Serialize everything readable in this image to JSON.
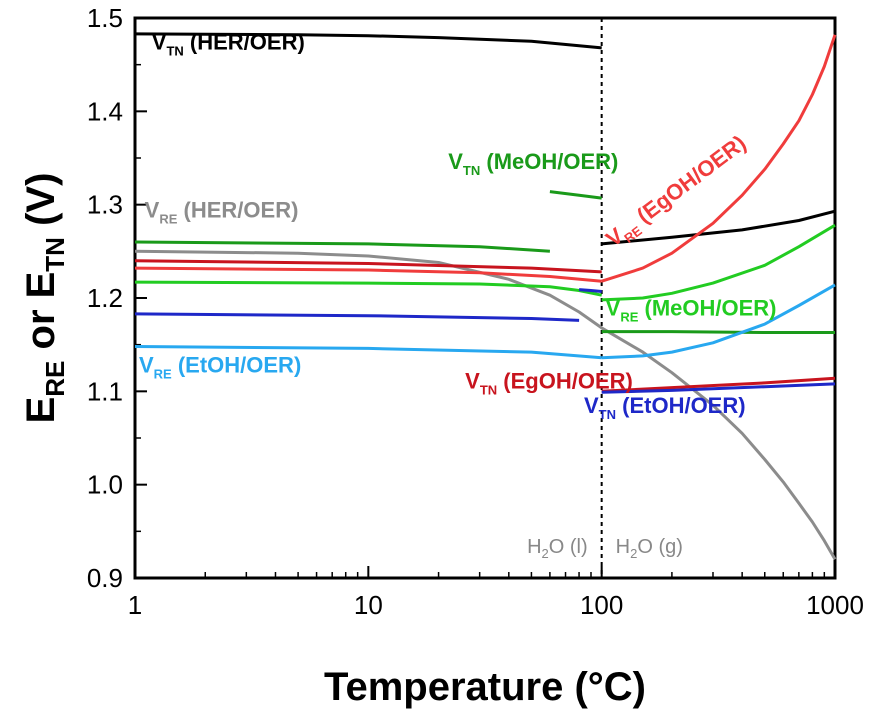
{
  "chart_data": {
    "type": "line",
    "xlabel": "Temperature (°C)",
    "ylabel_parts": [
      "E",
      "RE",
      " or E",
      "TN",
      " (V)"
    ],
    "xscale": "log",
    "xlim": [
      1,
      1000
    ],
    "ylim": [
      0.9,
      1.5
    ],
    "x_ticks": [
      1,
      10,
      100,
      1000
    ],
    "x_tick_labels": [
      "1",
      "10",
      "100",
      "1000"
    ],
    "y_ticks": [
      0.9,
      1.0,
      1.1,
      1.2,
      1.3,
      1.4,
      1.5
    ],
    "y_tick_labels": [
      "0.9",
      "1.0",
      "1.1",
      "1.2",
      "1.3",
      "1.4",
      "1.5"
    ],
    "grid": false,
    "phase_boundary": 100,
    "phase_labels": [
      "H2O (l)",
      "H2O (g)"
    ],
    "series": [
      {
        "name": "VTN (HER/OER)",
        "color": "#000000",
        "segments": [
          {
            "x": [
              1,
              5,
              10,
              20,
              50,
              100
            ],
            "y": [
              1.483,
              1.482,
              1.481,
              1.479,
              1.475,
              1.468
            ]
          },
          {
            "x": [
              100,
              200,
              400,
              700,
              1000
            ],
            "y": [
              1.258,
              1.265,
              1.273,
              1.283,
              1.293
            ]
          }
        ]
      },
      {
        "name": "VRE (HER/OER)",
        "color": "#8c8c8c",
        "segments": [
          {
            "x": [
              1,
              5,
              10,
              20,
              40,
              60,
              80,
              100,
              150,
              200,
              300,
              400,
              500,
              600,
              700,
              800,
              900,
              1000
            ],
            "y": [
              1.25,
              1.248,
              1.245,
              1.238,
              1.22,
              1.203,
              1.185,
              1.168,
              1.142,
              1.12,
              1.085,
              1.055,
              1.027,
              1.003,
              0.98,
              0.96,
              0.94,
              0.92
            ]
          }
        ]
      },
      {
        "name": "VTN (MeOH/OER)",
        "color": "#1a9a1a",
        "segments": [
          {
            "x": [
              1,
              10,
              30,
              60
            ],
            "y": [
              1.26,
              1.258,
              1.255,
              1.25
            ]
          },
          {
            "x": [
              60,
              80,
              100
            ],
            "y": [
              1.314,
              1.31,
              1.307
            ]
          },
          {
            "x": [
              100,
              200,
              500,
              1000
            ],
            "y": [
              1.164,
              1.164,
              1.163,
              1.163
            ]
          }
        ]
      },
      {
        "name": "VRE (MeOH/OER)",
        "color": "#22cc22",
        "segments": [
          {
            "x": [
              1,
              10,
              30,
              60,
              80,
              100
            ],
            "y": [
              1.217,
              1.216,
              1.215,
              1.212,
              1.208,
              1.203
            ]
          },
          {
            "x": [
              100,
              150,
              200,
              300,
              500,
              700,
              1000
            ],
            "y": [
              1.198,
              1.2,
              1.205,
              1.216,
              1.235,
              1.255,
              1.278
            ]
          }
        ]
      },
      {
        "name": "VRE (EgOH/OER)",
        "color": "#f03c3c",
        "segments": [
          {
            "x": [
              1,
              10,
              30,
              60,
              100
            ],
            "y": [
              1.232,
              1.23,
              1.227,
              1.223,
              1.218
            ]
          },
          {
            "x": [
              100,
              150,
              200,
              300,
              400,
              500,
              600,
              700,
              800,
              900,
              1000
            ],
            "y": [
              1.218,
              1.232,
              1.248,
              1.28,
              1.31,
              1.338,
              1.365,
              1.39,
              1.418,
              1.448,
              1.482
            ]
          }
        ]
      },
      {
        "name": "VTN (EgOH/OER)",
        "color": "#c8141e",
        "segments": [
          {
            "x": [
              1,
              10,
              50,
              100
            ],
            "y": [
              1.24,
              1.237,
              1.232,
              1.228
            ]
          },
          {
            "x": [
              100,
              200,
              500,
              1000
            ],
            "y": [
              1.1,
              1.104,
              1.109,
              1.114
            ]
          }
        ]
      },
      {
        "name": "VTN (EtOH/OER)",
        "color": "#1e28c8",
        "segments": [
          {
            "x": [
              1,
              10,
              50,
              80
            ],
            "y": [
              1.183,
              1.181,
              1.178,
              1.176
            ]
          },
          {
            "x": [
              80,
              90,
              100
            ],
            "y": [
              1.209,
              1.208,
              1.207
            ]
          },
          {
            "x": [
              100,
              200,
              500,
              1000
            ],
            "y": [
              1.099,
              1.101,
              1.105,
              1.108
            ]
          }
        ]
      },
      {
        "name": "VRE (EtOH/OER)",
        "color": "#28a8f0",
        "segments": [
          {
            "x": [
              1,
              10,
              50,
              100
            ],
            "y": [
              1.148,
              1.146,
              1.142,
              1.136
            ]
          },
          {
            "x": [
              100,
              150,
              200,
              300,
              500,
              700,
              1000
            ],
            "y": [
              1.136,
              1.138,
              1.142,
              1.152,
              1.172,
              1.192,
              1.214
            ]
          }
        ]
      }
    ],
    "annotations": [
      {
        "main": "V",
        "sub": "TN",
        "rest": " (HER/OER)",
        "color": "#000000",
        "x": 1.18,
        "y": 1.466,
        "rotate": 0
      },
      {
        "main": "V",
        "sub": "RE",
        "rest": " (HER/OER)",
        "color": "#8c8c8c",
        "x": 1.1,
        "y": 1.286,
        "rotate": 0
      },
      {
        "main": "V",
        "sub": "TN",
        "rest": " (MeOH/OER)",
        "color": "#1a9a1a",
        "x": 22,
        "y": 1.338,
        "rotate": 0
      },
      {
        "main": "V",
        "sub": "RE",
        "rest": " (MeOH/OER)",
        "color": "#22cc22",
        "x": 104,
        "y": 1.181,
        "rotate": 0
      },
      {
        "main": "V",
        "sub": "RE",
        "rest": " (EgOH/OER)",
        "color": "#f03c3c",
        "x": 112,
        "y": 1.254,
        "rotate": -37
      },
      {
        "main": "V",
        "sub": "TN",
        "rest": " (EgOH/OER)",
        "color": "#c8141e",
        "x": 26,
        "y": 1.103,
        "rotate": 0
      },
      {
        "main": "V",
        "sub": "TN",
        "rest": " (EtOH/OER)",
        "color": "#1e28c8",
        "x": 84,
        "y": 1.077,
        "rotate": 0
      },
      {
        "main": "V",
        "sub": "RE",
        "rest": " (EtOH/OER)",
        "color": "#28a8f0",
        "x": 1.04,
        "y": 1.12,
        "rotate": 0
      }
    ]
  }
}
